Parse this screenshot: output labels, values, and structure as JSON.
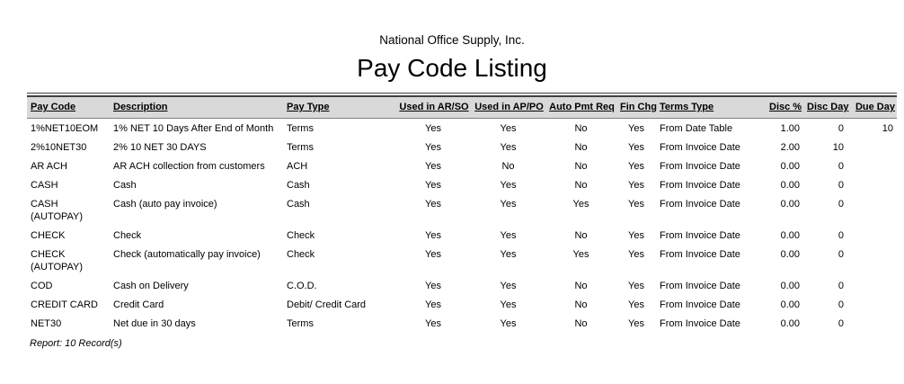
{
  "report": {
    "company_name": "National Office Supply, Inc.",
    "title": "Pay Code Listing",
    "footer_note": "Report: 10 Record(s)"
  },
  "colors": {
    "header_band": "#d9d9d9",
    "rule": "#3f3f3f",
    "header_bottom_border": "#808080",
    "text": "#000000"
  },
  "table": {
    "columns": [
      {
        "label": "Pay Code",
        "align": "left"
      },
      {
        "label": "Description",
        "align": "left"
      },
      {
        "label": "Pay Type",
        "align": "left"
      },
      {
        "label": "Used in AR/SO",
        "align": "center"
      },
      {
        "label": "Used in AP/PO",
        "align": "center"
      },
      {
        "label": "Auto Pmt Req",
        "align": "center"
      },
      {
        "label": "Fin Chg",
        "align": "center"
      },
      {
        "label": "Terms Type",
        "align": "left"
      },
      {
        "label": "Disc %",
        "align": "right"
      },
      {
        "label": "Disc Day",
        "align": "right"
      },
      {
        "label": "Due Day",
        "align": "right"
      }
    ],
    "rows": [
      [
        "1%NET10EOM",
        "1% NET 10 Days After End of Month",
        "Terms",
        "Yes",
        "Yes",
        "No",
        "Yes",
        "From Date Table",
        "1.00",
        "0",
        "10"
      ],
      [
        "2%10NET30",
        "2% 10 NET 30 DAYS",
        "Terms",
        "Yes",
        "Yes",
        "No",
        "Yes",
        "From Invoice Date",
        "2.00",
        "10",
        ""
      ],
      [
        "AR ACH",
        "AR ACH collection from customers",
        "ACH",
        "Yes",
        "No",
        "No",
        "Yes",
        "From Invoice Date",
        "0.00",
        "0",
        ""
      ],
      [
        "CASH",
        "Cash",
        "Cash",
        "Yes",
        "Yes",
        "No",
        "Yes",
        "From Invoice Date",
        "0.00",
        "0",
        ""
      ],
      [
        "CASH (AUTOPAY)",
        "Cash (auto pay invoice)",
        "Cash",
        "Yes",
        "Yes",
        "Yes",
        "Yes",
        "From Invoice Date",
        "0.00",
        "0",
        ""
      ],
      [
        "CHECK",
        "Check",
        "Check",
        "Yes",
        "Yes",
        "No",
        "Yes",
        "From Invoice Date",
        "0.00",
        "0",
        ""
      ],
      [
        "CHECK (AUTOPAY)",
        "Check (automatically pay invoice)",
        "Check",
        "Yes",
        "Yes",
        "Yes",
        "Yes",
        "From Invoice Date",
        "0.00",
        "0",
        ""
      ],
      [
        "COD",
        "Cash on Delivery",
        "C.O.D.",
        "Yes",
        "Yes",
        "No",
        "Yes",
        "From Invoice Date",
        "0.00",
        "0",
        ""
      ],
      [
        "CREDIT CARD",
        "Credit Card",
        "Debit/ Credit Card",
        "Yes",
        "Yes",
        "No",
        "Yes",
        "From Invoice Date",
        "0.00",
        "0",
        ""
      ],
      [
        "NET30",
        "Net due in 30 days",
        "Terms",
        "Yes",
        "Yes",
        "No",
        "Yes",
        "From Invoice Date",
        "0.00",
        "0",
        ""
      ]
    ]
  }
}
